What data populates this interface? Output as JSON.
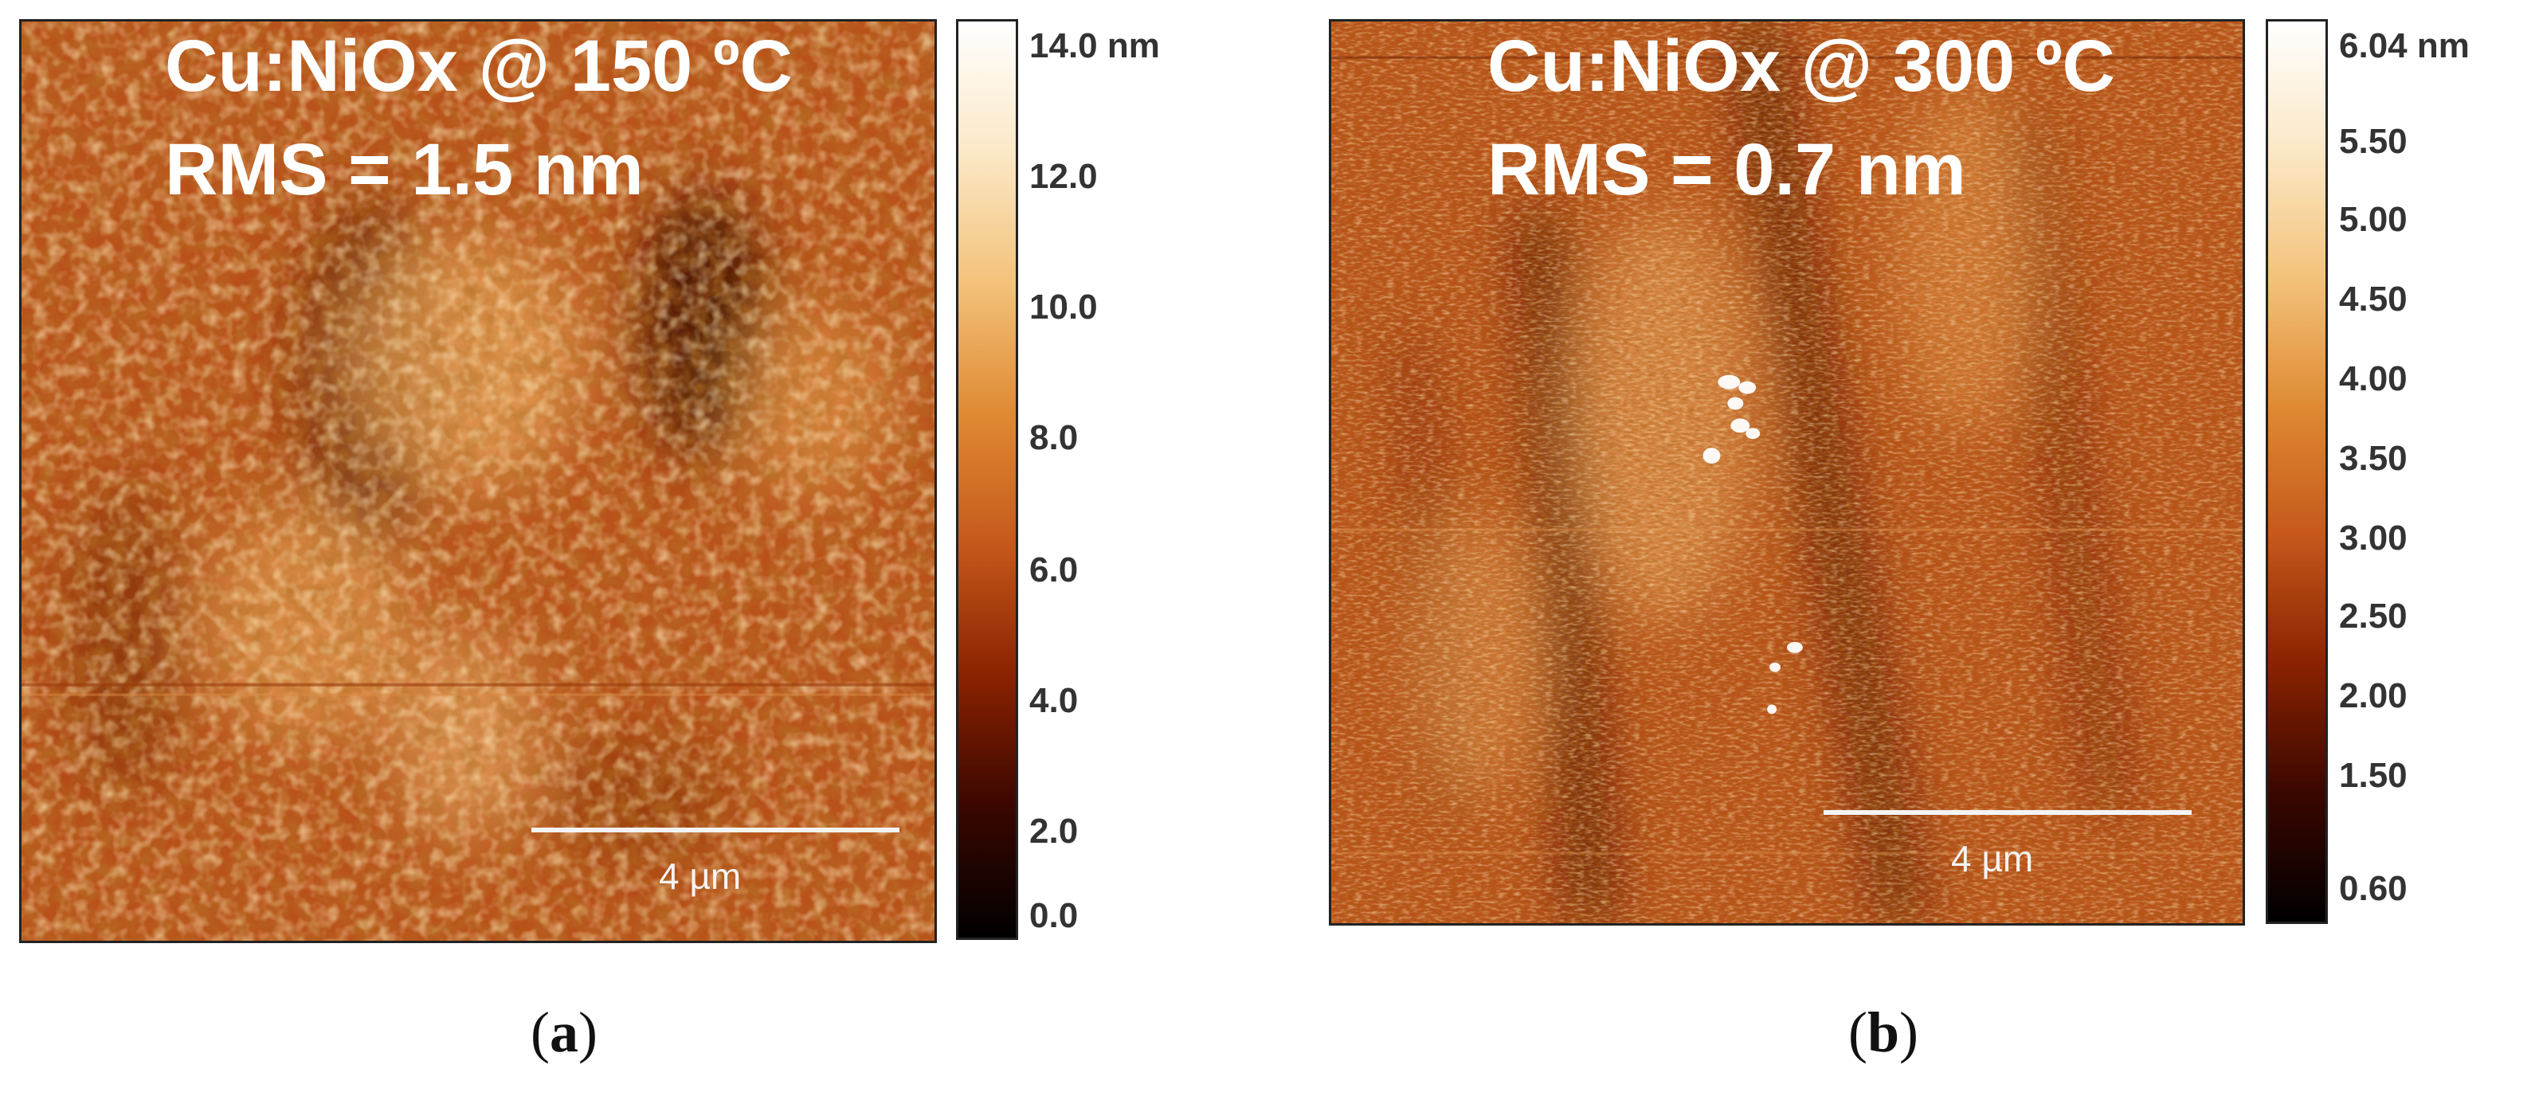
{
  "panels": [
    {
      "title_line1": "Cu:NiOx @ 150 ºC",
      "title_line2": "RMS = 1.5 nm",
      "scale_bar_label": "4 µm",
      "colorbar_ticks": [
        "14.0 nm",
        "12.0",
        "10.0",
        "8.0",
        "6.0",
        "4.0",
        "2.0",
        "0.0"
      ],
      "caption_letter": "a"
    },
    {
      "title_line1": "Cu:NiOx @ 300 ºC",
      "title_line2": "RMS = 0.7 nm",
      "scale_bar_label": "4 µm",
      "colorbar_ticks": [
        "6.04 nm",
        "5.50",
        "5.00",
        "4.50",
        "4.00",
        "3.50",
        "3.00",
        "2.50",
        "2.00",
        "1.50",
        "0.60"
      ],
      "caption_letter": "b"
    }
  ],
  "colors": {
    "colormap": [
      "#000000",
      "#3a0700",
      "#8a2200",
      "#c5581b",
      "#df8a33",
      "#f3c27a",
      "#fbe8c6",
      "#ffffff"
    ],
    "surface_base": "#b9521a"
  }
}
